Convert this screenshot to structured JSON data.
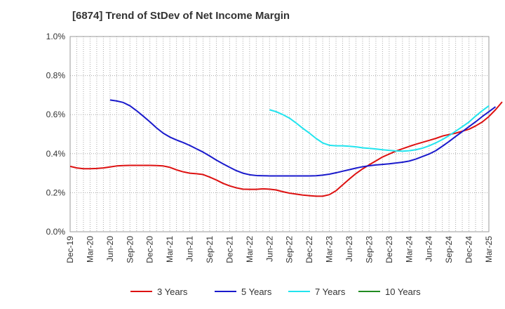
{
  "chart_data": {
    "type": "line",
    "title": "[6874]  Trend of StDev of Net Income Margin",
    "xlabel": "",
    "ylabel": "",
    "x_ticks": [
      "Dec-19",
      "Mar-20",
      "Jun-20",
      "Sep-20",
      "Dec-20",
      "Mar-21",
      "Jun-21",
      "Sep-21",
      "Dec-21",
      "Mar-22",
      "Jun-22",
      "Sep-22",
      "Dec-22",
      "Mar-23",
      "Jun-23",
      "Sep-23",
      "Dec-23",
      "Mar-24",
      "Jun-24",
      "Sep-24",
      "Dec-24",
      "Mar-25"
    ],
    "y_ticks": [
      "0.0%",
      "0.2%",
      "0.4%",
      "0.6%",
      "0.8%",
      "1.0%"
    ],
    "ylim": [
      0,
      1.0
    ],
    "y_unit": "%",
    "grid": true,
    "legend_position": "bottom",
    "series": [
      {
        "name": "3 Years",
        "color": "#dd1111",
        "points": [
          [
            "Dec-19",
            0.335
          ],
          [
            "Jan-20",
            0.327
          ],
          [
            "Feb-20",
            0.323
          ],
          [
            "Mar-20",
            0.323
          ],
          [
            "Apr-20",
            0.324
          ],
          [
            "May-20",
            0.327
          ],
          [
            "Jun-20",
            0.332
          ],
          [
            "Jul-20",
            0.337
          ],
          [
            "Aug-20",
            0.339
          ],
          [
            "Sep-20",
            0.34
          ],
          [
            "Oct-20",
            0.34
          ],
          [
            "Nov-20",
            0.34
          ],
          [
            "Dec-20",
            0.34
          ],
          [
            "Jan-21",
            0.339
          ],
          [
            "Feb-21",
            0.337
          ],
          [
            "Mar-21",
            0.33
          ],
          [
            "Apr-21",
            0.317
          ],
          [
            "May-21",
            0.307
          ],
          [
            "Jun-21",
            0.3
          ],
          [
            "Jul-21",
            0.297
          ],
          [
            "Aug-21",
            0.293
          ],
          [
            "Sep-21",
            0.28
          ],
          [
            "Oct-21",
            0.265
          ],
          [
            "Nov-21",
            0.248
          ],
          [
            "Dec-21",
            0.235
          ],
          [
            "Jan-22",
            0.225
          ],
          [
            "Feb-22",
            0.218
          ],
          [
            "Mar-22",
            0.217
          ],
          [
            "Apr-22",
            0.217
          ],
          [
            "May-22",
            0.22
          ],
          [
            "Jun-22",
            0.218
          ],
          [
            "Jul-22",
            0.214
          ],
          [
            "Aug-22",
            0.205
          ],
          [
            "Sep-22",
            0.198
          ],
          [
            "Oct-22",
            0.193
          ],
          [
            "Nov-22",
            0.188
          ],
          [
            "Dec-22",
            0.185
          ],
          [
            "Jan-23",
            0.182
          ],
          [
            "Feb-23",
            0.182
          ],
          [
            "Mar-23",
            0.19
          ],
          [
            "Apr-23",
            0.21
          ],
          [
            "May-23",
            0.24
          ],
          [
            "Jun-23",
            0.27
          ],
          [
            "Jul-23",
            0.298
          ],
          [
            "Aug-23",
            0.322
          ],
          [
            "Sep-23",
            0.343
          ],
          [
            "Oct-23",
            0.363
          ],
          [
            "Nov-23",
            0.383
          ],
          [
            "Dec-23",
            0.398
          ],
          [
            "Jan-24",
            0.413
          ],
          [
            "Feb-24",
            0.425
          ],
          [
            "Mar-24",
            0.437
          ],
          [
            "Apr-24",
            0.448
          ],
          [
            "May-24",
            0.458
          ],
          [
            "Jun-24",
            0.468
          ],
          [
            "Jul-24",
            0.478
          ],
          [
            "Aug-24",
            0.49
          ],
          [
            "Sep-24",
            0.498
          ],
          [
            "Oct-24",
            0.505
          ],
          [
            "Nov-24",
            0.515
          ],
          [
            "Dec-24",
            0.525
          ],
          [
            "Jan-25",
            0.542
          ],
          [
            "Feb-25",
            0.562
          ],
          [
            "Mar-25",
            0.59
          ],
          [
            "Apr-25",
            0.625
          ],
          [
            "May-25",
            0.665
          ]
        ]
      },
      {
        "name": "5 Years",
        "color": "#1a1acc",
        "points": [
          [
            "Jun-20",
            0.675
          ],
          [
            "Jul-20",
            0.67
          ],
          [
            "Aug-20",
            0.662
          ],
          [
            "Sep-20",
            0.645
          ],
          [
            "Oct-20",
            0.62
          ],
          [
            "Nov-20",
            0.592
          ],
          [
            "Dec-20",
            0.563
          ],
          [
            "Jan-21",
            0.532
          ],
          [
            "Feb-21",
            0.505
          ],
          [
            "Mar-21",
            0.485
          ],
          [
            "Apr-21",
            0.47
          ],
          [
            "May-21",
            0.457
          ],
          [
            "Jun-21",
            0.442
          ],
          [
            "Jul-21",
            0.425
          ],
          [
            "Aug-21",
            0.408
          ],
          [
            "Sep-21",
            0.388
          ],
          [
            "Oct-21",
            0.367
          ],
          [
            "Nov-21",
            0.348
          ],
          [
            "Dec-21",
            0.33
          ],
          [
            "Jan-22",
            0.313
          ],
          [
            "Feb-22",
            0.3
          ],
          [
            "Mar-22",
            0.292
          ],
          [
            "Apr-22",
            0.288
          ],
          [
            "May-22",
            0.287
          ],
          [
            "Jun-22",
            0.286
          ],
          [
            "Jul-22",
            0.286
          ],
          [
            "Aug-22",
            0.286
          ],
          [
            "Sep-22",
            0.286
          ],
          [
            "Oct-22",
            0.286
          ],
          [
            "Nov-22",
            0.286
          ],
          [
            "Dec-22",
            0.286
          ],
          [
            "Jan-23",
            0.287
          ],
          [
            "Feb-23",
            0.29
          ],
          [
            "Mar-23",
            0.295
          ],
          [
            "Apr-23",
            0.302
          ],
          [
            "May-23",
            0.31
          ],
          [
            "Jun-23",
            0.318
          ],
          [
            "Jul-23",
            0.326
          ],
          [
            "Aug-23",
            0.333
          ],
          [
            "Sep-23",
            0.338
          ],
          [
            "Oct-23",
            0.342
          ],
          [
            "Nov-23",
            0.345
          ],
          [
            "Dec-23",
            0.348
          ],
          [
            "Jan-24",
            0.352
          ],
          [
            "Feb-24",
            0.356
          ],
          [
            "Mar-24",
            0.362
          ],
          [
            "Apr-24",
            0.372
          ],
          [
            "May-24",
            0.385
          ],
          [
            "Jun-24",
            0.398
          ],
          [
            "Jul-24",
            0.415
          ],
          [
            "Aug-24",
            0.438
          ],
          [
            "Sep-24",
            0.462
          ],
          [
            "Oct-24",
            0.488
          ],
          [
            "Nov-24",
            0.513
          ],
          [
            "Dec-24",
            0.538
          ],
          [
            "Jan-25",
            0.563
          ],
          [
            "Feb-25",
            0.59
          ],
          [
            "Mar-25",
            0.615
          ],
          [
            "Apr-25",
            0.64
          ]
        ]
      },
      {
        "name": "7 Years",
        "color": "#22e4ee",
        "points": [
          [
            "Jun-22",
            0.625
          ],
          [
            "Jul-22",
            0.615
          ],
          [
            "Aug-22",
            0.6
          ],
          [
            "Sep-22",
            0.582
          ],
          [
            "Oct-22",
            0.557
          ],
          [
            "Nov-22",
            0.53
          ],
          [
            "Dec-22",
            0.505
          ],
          [
            "Jan-23",
            0.478
          ],
          [
            "Feb-23",
            0.455
          ],
          [
            "Mar-23",
            0.443
          ],
          [
            "Apr-23",
            0.44
          ],
          [
            "May-23",
            0.44
          ],
          [
            "Jun-23",
            0.438
          ],
          [
            "Jul-23",
            0.435
          ],
          [
            "Aug-23",
            0.43
          ],
          [
            "Sep-23",
            0.427
          ],
          [
            "Oct-23",
            0.424
          ],
          [
            "Nov-23",
            0.42
          ],
          [
            "Dec-23",
            0.417
          ],
          [
            "Jan-24",
            0.414
          ],
          [
            "Feb-24",
            0.413
          ],
          [
            "Mar-24",
            0.415
          ],
          [
            "Apr-24",
            0.42
          ],
          [
            "May-24",
            0.428
          ],
          [
            "Jun-24",
            0.44
          ],
          [
            "Jul-24",
            0.455
          ],
          [
            "Aug-24",
            0.472
          ],
          [
            "Sep-24",
            0.492
          ],
          [
            "Oct-24",
            0.515
          ],
          [
            "Nov-24",
            0.538
          ],
          [
            "Dec-24",
            0.562
          ],
          [
            "Jan-25",
            0.592
          ],
          [
            "Feb-25",
            0.62
          ],
          [
            "Mar-25",
            0.645
          ]
        ]
      },
      {
        "name": "10 Years",
        "color": "#228b22",
        "points": []
      }
    ]
  }
}
